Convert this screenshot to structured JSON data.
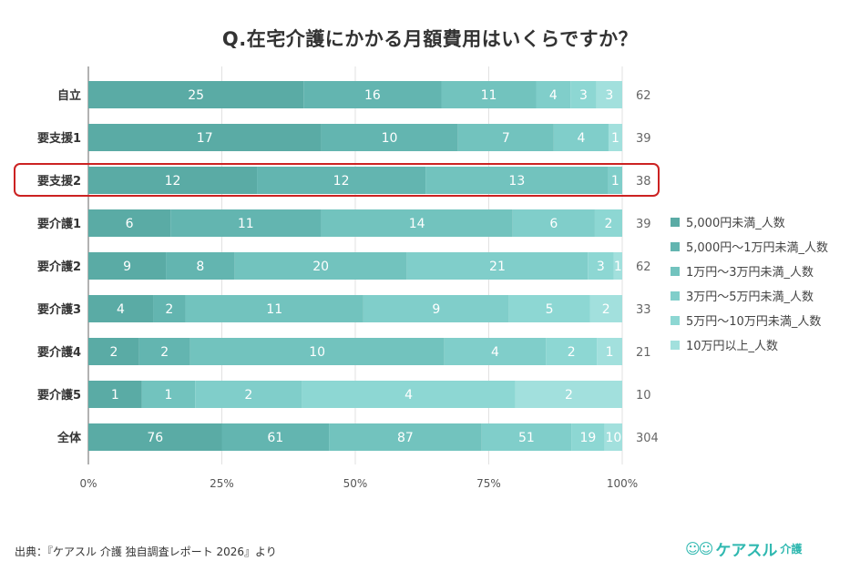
{
  "chart_data": {
    "type": "bar",
    "orientation": "horizontal",
    "stacked": "percent",
    "title": "Q.在宅介護にかかる月額費用はいくらですか？",
    "categories": [
      "自立",
      "要支援1",
      "要支援2",
      "要介護1",
      "要介護2",
      "要介護3",
      "要介護4",
      "要介護5",
      "全体"
    ],
    "totals": [
      62,
      39,
      38,
      39,
      62,
      33,
      21,
      10,
      304
    ],
    "series": [
      {
        "name": "5,000円未満_人数",
        "color": "#5aaba5",
        "values": [
          25,
          17,
          12,
          6,
          9,
          4,
          2,
          1,
          76
        ]
      },
      {
        "name": "5,000円〜1万円未満_人数",
        "color": "#63b5b0",
        "values": [
          16,
          10,
          12,
          11,
          8,
          2,
          2,
          0,
          61
        ]
      },
      {
        "name": "1万円〜3万円未満_人数",
        "color": "#72c3be",
        "values": [
          11,
          7,
          13,
          14,
          20,
          11,
          10,
          1,
          87
        ]
      },
      {
        "name": "3万円〜5万円未満_人数",
        "color": "#80ceca",
        "values": [
          4,
          4,
          1,
          6,
          21,
          9,
          4,
          2,
          51
        ]
      },
      {
        "name": "5万円〜10万円未満_人数",
        "color": "#8dd7d3",
        "values": [
          3,
          0,
          0,
          2,
          3,
          5,
          2,
          4,
          19
        ]
      },
      {
        "name": "10万円以上_人数",
        "color": "#a2e0dd",
        "values": [
          3,
          1,
          0,
          0,
          1,
          2,
          1,
          2,
          10
        ]
      }
    ],
    "xlim": [
      0,
      100
    ],
    "xticks": [
      "0%",
      "25%",
      "50%",
      "75%",
      "100%"
    ],
    "grid": true,
    "legend": "right",
    "highlighted_category": "要支援2",
    "highlight_color": "#cc2222"
  },
  "footer": {
    "source": "出典：『ケアスル 介護 独自調査レポート 2026』より",
    "logo_main": "ケアスル",
    "logo_sub": "介護"
  }
}
